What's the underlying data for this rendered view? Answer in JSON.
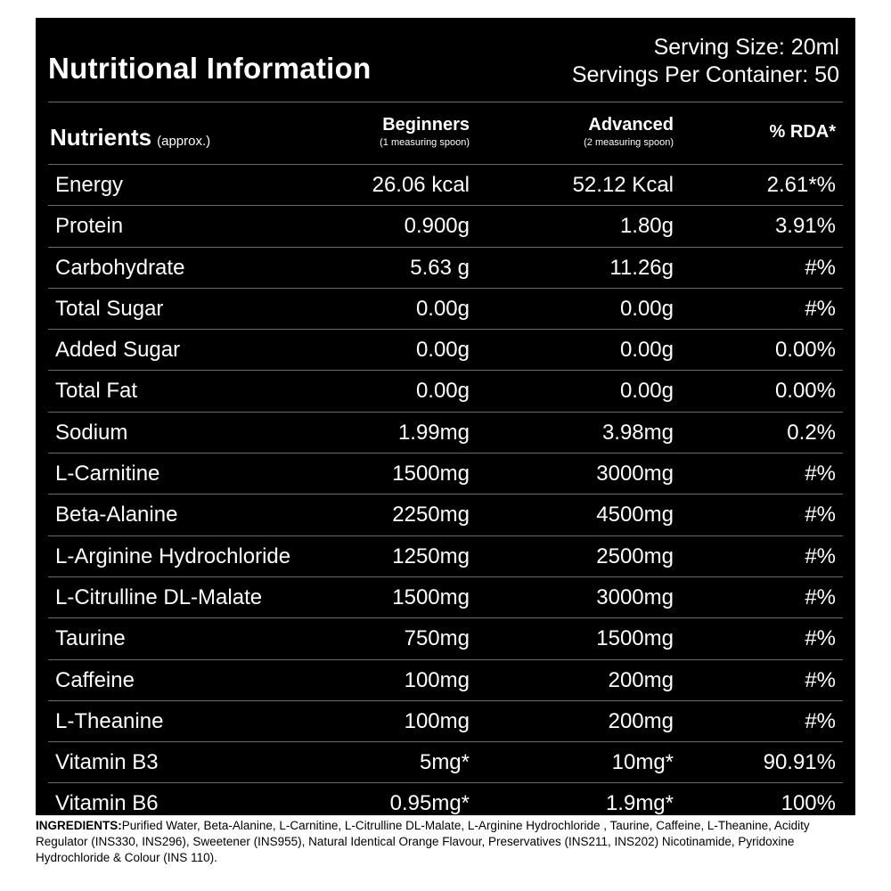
{
  "title": "Nutritional Information",
  "serving": {
    "size": "Serving Size: 20ml",
    "per_container": "Servings Per Container: 50"
  },
  "header": {
    "nutrients": "Nutrients",
    "approx": "(approx.)",
    "beginners": "Beginners",
    "beginners_sub": "(1 measuring spoon)",
    "advanced": "Advanced",
    "advanced_sub": "(2 measuring spoon)",
    "rda": "% RDA*"
  },
  "rows": [
    {
      "name": "Energy",
      "beginners": "26.06 kcal",
      "advanced": "52.12 Kcal",
      "rda": "2.61*%"
    },
    {
      "name": "Protein",
      "beginners": "0.900g",
      "advanced": "1.80g",
      "rda": "3.91%"
    },
    {
      "name": "Carbohydrate",
      "beginners": "5.63 g",
      "advanced": "11.26g",
      "rda": "#%"
    },
    {
      "name": "Total Sugar",
      "beginners": "0.00g",
      "advanced": "0.00g",
      "rda": "#%"
    },
    {
      "name": "Added Sugar",
      "beginners": "0.00g",
      "advanced": "0.00g",
      "rda": "0.00%"
    },
    {
      "name": "Total Fat",
      "beginners": "0.00g",
      "advanced": "0.00g",
      "rda": "0.00%"
    },
    {
      "name": "Sodium",
      "beginners": "1.99mg",
      "advanced": "3.98mg",
      "rda": "0.2%"
    },
    {
      "name": "L-Carnitine",
      "beginners": "1500mg",
      "advanced": "3000mg",
      "rda": "#%"
    },
    {
      "name": "Beta-Alanine",
      "beginners": "2250mg",
      "advanced": "4500mg",
      "rda": "#%"
    },
    {
      "name": "L-Arginine Hydrochloride",
      "beginners": "1250mg",
      "advanced": "2500mg",
      "rda": "#%"
    },
    {
      "name": "L-Citrulline DL-Malate",
      "beginners": "1500mg",
      "advanced": "3000mg",
      "rda": "#%"
    },
    {
      "name": "Taurine",
      "beginners": "750mg",
      "advanced": "1500mg",
      "rda": "#%"
    },
    {
      "name": "Caffeine",
      "beginners": "100mg",
      "advanced": "200mg",
      "rda": "#%"
    },
    {
      "name": "L-Theanine",
      "beginners": "100mg",
      "advanced": "200mg",
      "rda": "#%"
    },
    {
      "name": "Vitamin B3",
      "beginners": "5mg*",
      "advanced": "10mg*",
      "rda": "90.91%"
    },
    {
      "name": "Vitamin B6",
      "beginners": "0.95mg*",
      "advanced": "1.9mg*",
      "rda": "100%"
    }
  ],
  "ingredients": {
    "label": "INGREDIENTS:",
    "text": "Purified Water, Beta-Alanine, L-Carnitine, L-Citrulline DL-Malate, L-Arginine Hydrochloride , Taurine, Caffeine, L-Theanine, Acidity Regulator (INS330, INS296),  Sweetener (INS955), Natural Identical Orange Flavour,  Preservatives (INS211, INS202) Nicotinamide, Pyridoxine Hydrochloride & Colour (INS 110)."
  }
}
